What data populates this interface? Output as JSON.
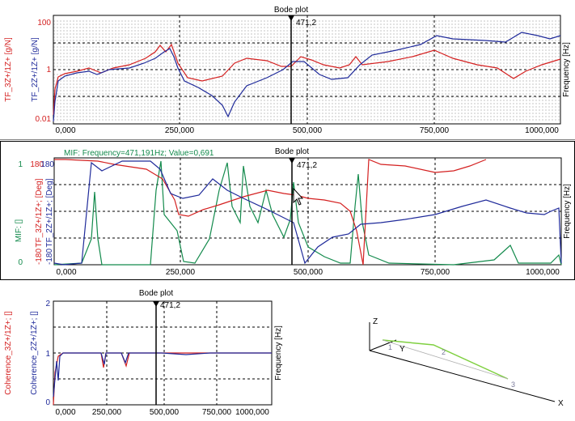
{
  "colors": {
    "red": "#d42020",
    "blue": "#1f2a9a",
    "green": "#138a4c",
    "lightgreen": "#7fd040",
    "grid": "#000000",
    "minor_grid": "#bdbdbd"
  },
  "panel1": {
    "title": "Bode plot",
    "cursor_label": "471,2",
    "y_label_red": "TF_3Z+/1Z+ [g/N]",
    "y_label_blue": "TF_2Z+/1Z+ [g/N]",
    "x_label": "Frequency [Hz]",
    "y_ticks": [
      "100",
      "1",
      "0.01"
    ],
    "x_ticks": [
      "0,000",
      "250,000",
      "500,000",
      "750,000",
      "1000,000"
    ]
  },
  "panel2": {
    "title": "Bode plot",
    "cursor_label": "471,2",
    "readout": "MIF: Frequency=471,191Hz; Value=0,691",
    "y_label_green": "MIF: []",
    "y_label_red": "TF_3Z+/1Z+; [Deg]",
    "y_label_blue": "TF_2Z+/1Z+; [Deg]",
    "x_label": "Frequency [Hz]",
    "left_ticks": [
      "1",
      "0"
    ],
    "right_ticks": [
      "180",
      "180",
      "-180",
      "-180"
    ],
    "x_ticks": [
      "0,000",
      "250,000",
      "500,000",
      "750,000",
      "1000,000"
    ]
  },
  "panel3": {
    "title": "Bode plot",
    "cursor_label": "471,2",
    "y_label_red": "Coherence_3Z+/1Z+; []",
    "y_label_blue": "Coherence_2Z+/1Z+; []",
    "x_label": "Frequency [Hz]",
    "y_ticks": [
      "2",
      "1",
      "0"
    ],
    "x_ticks": [
      "0,000",
      "250,000",
      "500,000",
      "750,000",
      "1000,000"
    ]
  },
  "geometry": {
    "axis_z": "Z",
    "axis_y": "Y",
    "axis_x": "X",
    "node_1": "1",
    "node_2": "2",
    "node_3": "3"
  }
}
